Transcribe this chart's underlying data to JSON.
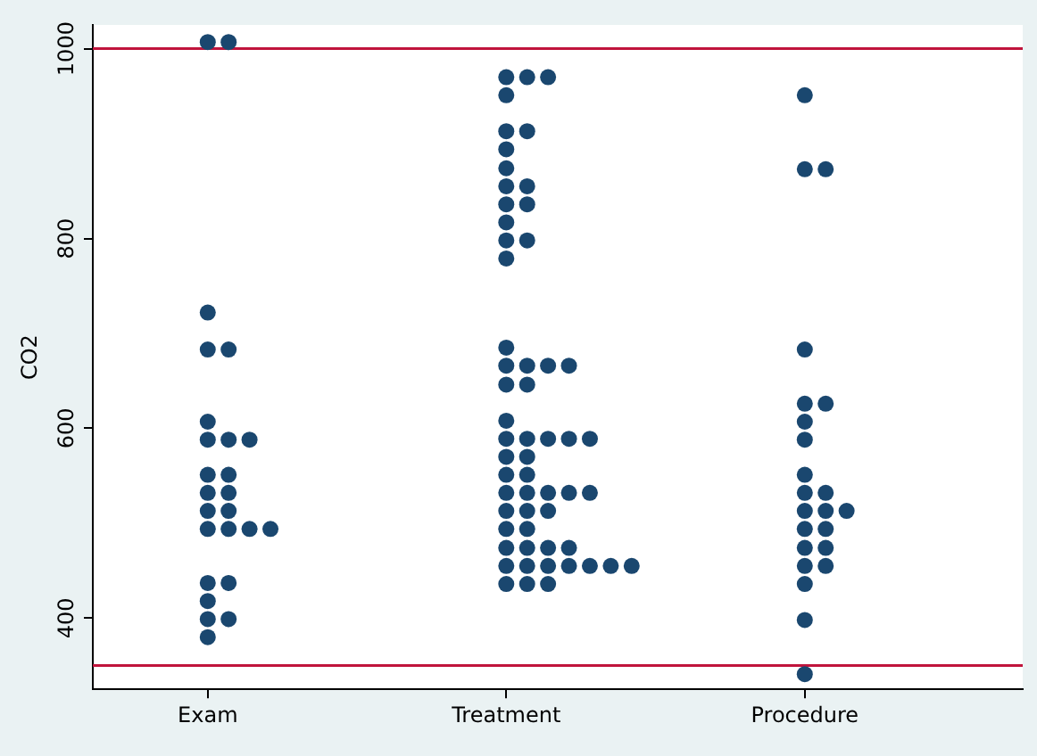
{
  "chart_data": {
    "type": "scatter",
    "ylabel": "CO2",
    "categories": [
      "Exam",
      "Treatment",
      "Procedure"
    ],
    "ylim": [
      325,
      1025
    ],
    "yticks": [
      400,
      600,
      800,
      1000
    ],
    "grid": false,
    "legend": false,
    "marker": "circle",
    "ref_lines": [
      {
        "axis": "y",
        "value": 1000,
        "color": "#c0143c"
      },
      {
        "axis": "y",
        "value": 350,
        "color": "#c0143c"
      }
    ],
    "series": [
      {
        "color": "#1a476f",
        "x": [
          "Exam",
          "Exam",
          "Exam",
          "Exam",
          "Exam",
          "Exam",
          "Exam",
          "Exam",
          "Exam",
          "Exam",
          "Exam",
          "Exam",
          "Exam",
          "Exam",
          "Exam",
          "Exam",
          "Exam",
          "Exam",
          "Exam",
          "Exam",
          "Exam",
          "Exam",
          "Exam",
          "Exam",
          "Exam"
        ],
        "values": [
          1007,
          1007,
          722,
          683,
          683,
          607,
          588,
          588,
          588,
          551,
          551,
          532,
          532,
          513,
          513,
          494,
          494,
          494,
          494,
          437,
          437,
          418,
          399,
          399,
          380
        ]
      },
      {
        "color": "#1a476f",
        "x": [
          "Treatment",
          "Treatment",
          "Treatment",
          "Treatment",
          "Treatment",
          "Treatment",
          "Treatment",
          "Treatment",
          "Treatment",
          "Treatment",
          "Treatment",
          "Treatment",
          "Treatment",
          "Treatment",
          "Treatment",
          "Treatment",
          "Treatment",
          "Treatment",
          "Treatment",
          "Treatment",
          "Treatment",
          "Treatment",
          "Treatment",
          "Treatment",
          "Treatment",
          "Treatment",
          "Treatment",
          "Treatment",
          "Treatment",
          "Treatment",
          "Treatment",
          "Treatment",
          "Treatment",
          "Treatment",
          "Treatment",
          "Treatment",
          "Treatment",
          "Treatment",
          "Treatment",
          "Treatment",
          "Treatment",
          "Treatment",
          "Treatment",
          "Treatment",
          "Treatment",
          "Treatment",
          "Treatment",
          "Treatment",
          "Treatment",
          "Treatment",
          "Treatment",
          "Treatment",
          "Treatment",
          "Treatment",
          "Treatment",
          "Treatment",
          "Treatment"
        ],
        "values": [
          970,
          970,
          970,
          951,
          913,
          913,
          894,
          874,
          855,
          855,
          836,
          836,
          817,
          798,
          798,
          779,
          685,
          666,
          666,
          666,
          666,
          646,
          646,
          608,
          589,
          589,
          589,
          589,
          589,
          570,
          570,
          551,
          551,
          532,
          532,
          532,
          532,
          532,
          513,
          513,
          513,
          494,
          494,
          474,
          474,
          474,
          474,
          455,
          455,
          455,
          455,
          455,
          455,
          455,
          436,
          436,
          436
        ]
      },
      {
        "color": "#1a476f",
        "x": [
          "Procedure",
          "Procedure",
          "Procedure",
          "Procedure",
          "Procedure",
          "Procedure",
          "Procedure",
          "Procedure",
          "Procedure",
          "Procedure",
          "Procedure",
          "Procedure",
          "Procedure",
          "Procedure",
          "Procedure",
          "Procedure",
          "Procedure",
          "Procedure",
          "Procedure",
          "Procedure",
          "Procedure",
          "Procedure",
          "Procedure"
        ],
        "values": [
          951,
          873,
          873,
          683,
          626,
          626,
          607,
          588,
          551,
          532,
          532,
          513,
          513,
          513,
          494,
          494,
          474,
          474,
          455,
          455,
          436,
          398,
          341
        ]
      }
    ]
  }
}
